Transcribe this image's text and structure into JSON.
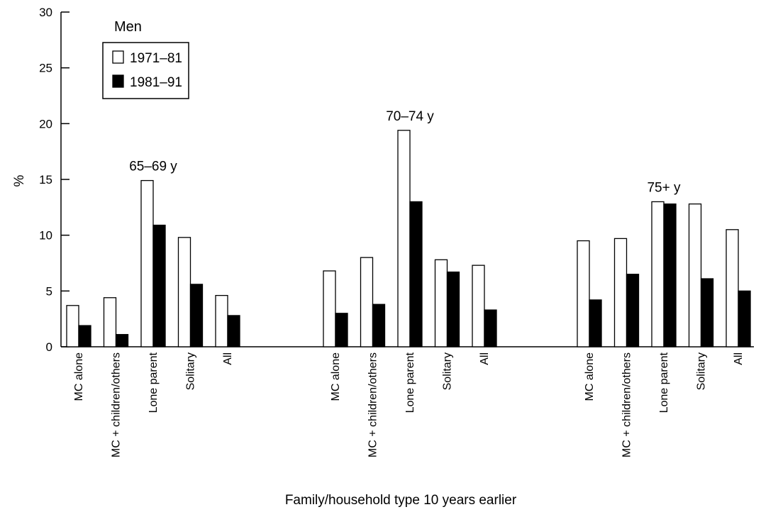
{
  "chart_data": {
    "type": "bar",
    "ylabel": "%",
    "xlabel": "Family/household type 10 years earlier",
    "ylim": [
      0,
      30
    ],
    "yticks": [
      0,
      5,
      10,
      15,
      20,
      25,
      30
    ],
    "grid": false,
    "legend": {
      "title": "Men",
      "placement": "top-left",
      "entries": [
        {
          "name": "1971–81",
          "color": "#ffffff"
        },
        {
          "name": "1981–91",
          "color": "#000000"
        }
      ]
    },
    "categories": [
      "MC alone",
      "MC + children/others",
      "Lone parent",
      "Solitary",
      "All"
    ],
    "groups": [
      {
        "label": "65–69 y",
        "series": [
          {
            "name": "1971–81",
            "values": [
              3.7,
              4.4,
              14.9,
              9.8,
              4.6
            ]
          },
          {
            "name": "1981–91",
            "values": [
              1.9,
              1.1,
              10.9,
              5.6,
              2.8
            ]
          }
        ]
      },
      {
        "label": "70–74 y",
        "series": [
          {
            "name": "1971–81",
            "values": [
              6.8,
              8.0,
              19.4,
              7.8,
              7.3
            ]
          },
          {
            "name": "1981–91",
            "values": [
              3.0,
              3.8,
              13.0,
              6.7,
              3.3
            ]
          }
        ]
      },
      {
        "label": "75+ y",
        "series": [
          {
            "name": "1971–81",
            "values": [
              9.5,
              9.7,
              13.0,
              12.8,
              10.5
            ]
          },
          {
            "name": "1981–91",
            "values": [
              4.2,
              6.5,
              12.8,
              6.1,
              5.0
            ]
          }
        ]
      }
    ],
    "colors": {
      "series1_fill": "#ffffff",
      "series2_fill": "#000000",
      "stroke": "#000000"
    }
  }
}
